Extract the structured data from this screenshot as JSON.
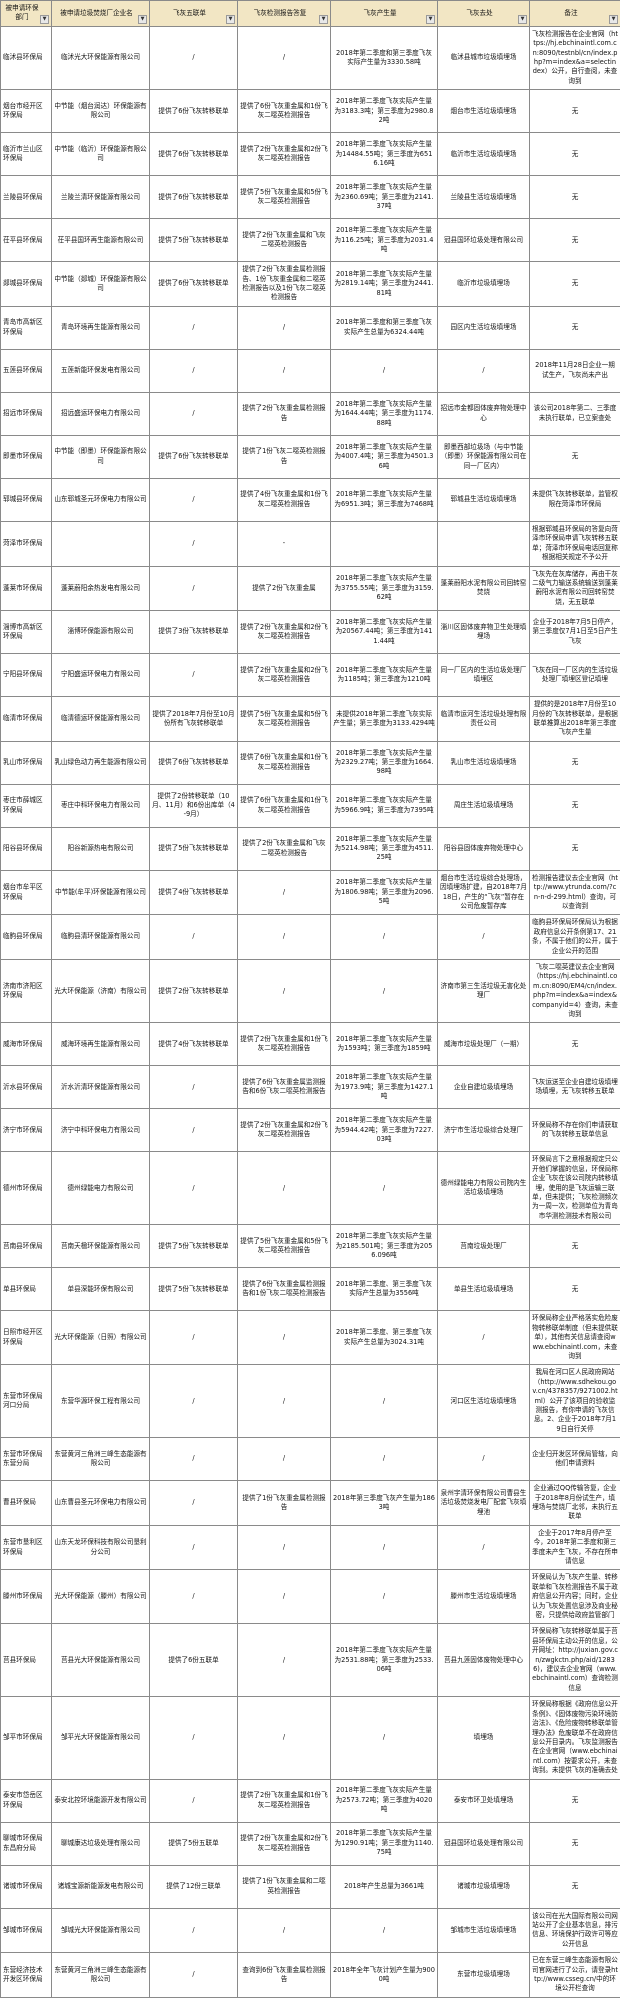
{
  "headers": [
    "被申请环保部门",
    "被申请垃圾焚烧厂企业名",
    "飞灰五联单",
    "飞灰检测报告答复",
    "飞灰产生量",
    "飞灰去处",
    "备注"
  ],
  "header_bg": "#f2e6c4",
  "rows": [
    {
      "dept": "临沭县环保局",
      "company": "临沭光大环保能源有限公司",
      "manifest": "/",
      "report": "/",
      "amount": "2018年第二季度和第三季度飞灰实际产生量为3330.58吨",
      "dest": "临沭县城市垃圾填埋场",
      "note": "飞灰检测报告在企业官网（https://hj.ebchinaintl.com.cn:8090/testnbl/cn/index.php?m=index&a=selectindex）公开，自行查阅，未查询到"
    },
    {
      "dept": "烟台市经开区环保局",
      "company": "中节能（烟台润达）环保能源有限公司",
      "manifest": "提供了6份飞灰转移联单",
      "report": "提供了6份飞灰重金属和1份飞灰二噁英检测报告",
      "amount": "2018年第二季度飞灰实际产生量为3183.3吨；第三季度为2980.82吨",
      "dest": "烟台市生活垃圾填埋场",
      "note": "无"
    },
    {
      "dept": "临沂市兰山区环保局",
      "company": "中节能（临沂）环保能源有限公司",
      "manifest": "提供了6份飞灰转移联单",
      "report": "提供了2份飞灰重金属和2份飞灰二噁英检测报告",
      "amount": "2018年第二季度飞灰实际产生量为14484.55吨；第三季度为6516.16吨",
      "dest": "临沂市生活垃圾填埋场",
      "note": "无"
    },
    {
      "dept": "兰陵县环保局",
      "company": "兰陵兰清环保能源有限公司",
      "manifest": "提供了6份飞灰转移联单",
      "report": "提供了5份飞灰重金属和5份飞灰二噁英检测报告",
      "amount": "2018年第二季度飞灰实际产生量为2360.69吨；第三季度为2141.37吨",
      "dest": "兰陵县生活垃圾填埋场",
      "note": "无"
    },
    {
      "dept": "茌平县环保局",
      "company": "茌平县国环再生能源有限公司",
      "manifest": "提供了5份飞灰转移联单",
      "report": "提供了2份飞灰重金属和飞灰二噁英检测报告",
      "amount": "2018年第二季度飞灰实际产生量为116.25吨；第三季度为2031.4吨",
      "dest": "冠县国环垃圾处理有限公司",
      "note": "无"
    },
    {
      "dept": "郯城县环保局",
      "company": "中节能（郯城）环保能源有限公司",
      "manifest": "提供了6份飞灰转移联单",
      "report": "提供了2份飞灰重金属检测报告、1份飞灰重金属和二噁英检测报告以及1份飞灰二噁英检测报告",
      "amount": "2018年第二季度飞灰实际产生量为2819.14吨；第三季度为2441.81吨",
      "dest": "临沂市垃圾填埋场",
      "note": "无"
    },
    {
      "dept": "青岛市高新区环保局",
      "company": "青岛环境再生能源有限公司",
      "manifest": "/",
      "report": "/",
      "amount": "2018年第二季度和第三季度飞灰实际产生总量为6324.44吨",
      "dest": "园区内生活垃圾填埋场",
      "note": "无"
    },
    {
      "dept": "五莲县环保局",
      "company": "五莲新能环保发电有限公司",
      "manifest": "/",
      "report": "/",
      "amount": "/",
      "dest": "/",
      "note": "2018年11月28日企业一期试生产，飞灰尚未产出"
    },
    {
      "dept": "招远市环保局",
      "company": "招远盛运环保电力有限公司",
      "manifest": "/",
      "report": "提供了2份飞灰重金属检测报告",
      "amount": "2018年第二季度飞灰实际产生量为1644.44吨；第三季度为1174.88吨",
      "dest": "招远市金都固体废弃物处理中心",
      "note": "该公司2018年第二、三季度未执行联单，已立案查处"
    },
    {
      "dept": "即墨市环保局",
      "company": "中节能（即墨）环保能源有限公司",
      "manifest": "提供了6份飞灰转移联单",
      "report": "提供了1份飞灰二噁英检测报告",
      "amount": "2018年第二季度飞灰实际产生量为4007.4吨；第三季度为4501.36吨",
      "dest": "即墨西部垃圾场（与中节能（即墨）环保能源有限公司在同一厂区内）",
      "note": "无"
    },
    {
      "dept": "郓城县环保局",
      "company": "山东郓城圣元环保电力有限公司",
      "manifest": "/",
      "report": "提供了4份飞灰重金属和1份飞灰二噁英检测报告",
      "amount": "2018年第二季度飞灰实际产生量为6951.3吨；第三季度为7468吨",
      "dest": "郓城县生活垃圾填埋场",
      "note": "未提供飞灰转移联单，监管权限在菏泽市环保局"
    },
    {
      "dept": "菏泽市环保局",
      "company": "",
      "manifest": "/",
      "report": "-",
      "amount": "",
      "dest": "",
      "note": "根据郓城县环保局的答复向菏泽市环保局申请飞灰转移五联单；菏泽市环保局电话回复称根据相关规定不予公开",
      "cut": true
    },
    {
      "dept": "蓬莱市环保局",
      "company": "蓬莱蔚阳余热发电有限公司",
      "manifest": "/",
      "report": "提供了2份飞灰重金属",
      "amount": "2018年第二季度飞灰实际产生量为3755.55吨；第三季度为3159.62吨",
      "dest": "蓬莱蔚阳水泥有限公司回转窑焚烧",
      "note": "飞灰先在灰库储存，再由干灰二级气力输送系统输送到蓬莱蔚阳水泥有限公司回转窑焚烧，无五联单"
    },
    {
      "dept": "淄博市高新区环保局",
      "company": "淄博环保能源有限公司",
      "manifest": "提供了3份飞灰转移联单",
      "report": "提供了2份飞灰重金属和2份飞灰二噁英检测报告",
      "amount": "2018年第二季度飞灰实际产生量为20567.44吨；第三季度为1411.44吨",
      "dest": "淄川区固体废弃物卫生处理填埋场",
      "note": "企业于2018年7月5日停产，第三季度仅7月1日至5日产生飞灰"
    },
    {
      "dept": "宁阳县环保局",
      "company": "宁阳盛运环保电力有限公司",
      "manifest": "/",
      "report": "提供了2份飞灰重金属和2份飞灰二噁英检测报告",
      "amount": "2018年第二季度飞灰实际产生量为1185吨；第三季度为1210吨",
      "dest": "同一厂区内的生活垃圾处理厂填埋区",
      "note": "飞灰在同一厂区内的生活垃圾处理厂填埋区登记填埋"
    },
    {
      "dept": "临清市环保局",
      "company": "临清德运环保能源有限公司",
      "manifest": "提供了2018年7月份至10月份所有飞灰转移联单",
      "report": "提供了5份飞灰重金属和5份飞灰二噁英检测报告",
      "amount": "未提供2018年第二季度飞灰实际产生量；第三季度为3133.4294吨",
      "dest": "临清市运河生活垃圾处理有限责任公司",
      "note": "提供的是2018年7月份至10月份的飞灰转移联单，是根据联单推算出2018年第三季度飞灰产生量"
    },
    {
      "dept": "乳山市环保局",
      "company": "乳山绿色动力再生能源有限公司",
      "manifest": "提供了6份飞灰转移联单",
      "report": "提供了6份飞灰重金属和1份飞灰二噁英检测报告",
      "amount": "2018年第二季度飞灰实际产生量为2329.27吨；第三季度为1664.98吨",
      "dest": "乳山市生活垃圾填埋场",
      "note": "无"
    },
    {
      "dept": "枣庄市薛城区环保局",
      "company": "枣庄中科环保电力有限公司",
      "manifest": "提供了2份转移联单（10月、11月）和6份出库单（4-9月）",
      "report": "提供了6份飞灰重金属和1份飞灰二噁英检测报告",
      "amount": "2018年第二季度飞灰实际产生量为5966.9吨；第三季度为7395吨",
      "dest": "周庄生活垃圾填埋场",
      "note": "无"
    },
    {
      "dept": "阳谷县环保局",
      "company": "阳谷新源热电有限公司",
      "manifest": "提供了5份飞灰转移联单",
      "report": "提供了2份飞灰重金属和飞灰二噁英检测报告",
      "amount": "2018年第二季度飞灰实际产生量为5214.98吨；第三季度为4511.25吨",
      "dest": "阳谷县固体废弃物处理中心",
      "note": "无"
    },
    {
      "dept": "烟台市牟平区环保局",
      "company": "中节能(牟平)环保能源有限公司",
      "manifest": "提供了4份飞灰转移联单",
      "report": "/",
      "amount": "2018年第二季度飞灰实际产生量为1806.98吨；第三季度为2096.5吨",
      "dest": "烟台市生活垃圾综合处理场，因填埋场扩建，自2018年7月18日，产生的“飞灰”暂存在公司危废暂存库",
      "note": "检测报告建议去企业官网（http://www.ytrunda.com/?cn-n-d-299.html）查询，可以查询到"
    },
    {
      "dept": "临朐县环保局",
      "company": "临朐县清环保能源有限公司",
      "manifest": "/",
      "report": "/",
      "amount": "/",
      "dest": "/",
      "note": "临朐县环保局环保局认为根据政府信息公开条例第17、21条，不属于他们的公开，属于企业公开的范围"
    },
    {
      "dept": "济南市济阳区环保局",
      "company": "光大环保能源（济南）有限公司",
      "manifest": "提供了2份飞灰转移联单",
      "report": "/",
      "amount": "/",
      "dest": "济南市第三生活垃圾无害化处理厂",
      "note": "飞灰二噁英建议去企业官网（https://hj.ebchinaintl.com.cn:8090/EM4/cn/index.php?m=index&a=index&companyid=4）查询，未查询到"
    },
    {
      "dept": "威海市环保局",
      "company": "威海环境再生能源有限公司",
      "manifest": "提供了4份飞灰转移联单",
      "report": "提供了2份飞灰重金属和1份飞灰二噁英检测报告",
      "amount": "2018年第二季度飞灰实际产生量为1593吨；第三季度为1859吨",
      "dest": "威海市垃圾处理厂（一期）",
      "note": "无"
    },
    {
      "dept": "沂水县环保局",
      "company": "沂水沂清环保能源有限公司",
      "manifest": "/",
      "report": "提供了6份飞灰重金属监测报告和6份飞灰二噁英检测报告",
      "amount": "2018年第二季度飞灰实际产生量为1973.9吨；第三季度为1427.1吨",
      "dest": "企业自建垃圾填埋场",
      "note": "飞灰运送至企业自建垃圾填埋场填埋，无飞灰转移五联单"
    },
    {
      "dept": "济宁市环保局",
      "company": "济宁中科环保电力有限公司",
      "manifest": "/",
      "report": "提供了2份飞灰重金属和2份飞灰二噁英检测报告",
      "amount": "2018年第二季度飞灰实际产生量为5944.42吨；第三季度为7227.03吨",
      "dest": "济宁市生活垃圾综合处理厂",
      "note": "环保局称不存在你们申请获取的飞灰转移五联单信息"
    },
    {
      "dept": "德州市环保局",
      "company": "德州绿能电力有限公司",
      "manifest": "/",
      "report": "/",
      "amount": "/",
      "dest": "德州绿能电力有限公司院内生活垃圾填埋场",
      "note": "环保局言下之意根据规定只公开他们掌握的信息，环保局称企业飞灰在该公司院内转移填埋，使用的是飞灰运输三联单，但未提供；飞灰检测频次为一周一次，检测单位为青岛市华测检测技术有限公司"
    },
    {
      "dept": "莒南县环保局",
      "company": "莒南天楹环保能源有限公司",
      "manifest": "提供了5份飞灰转移联单",
      "report": "提供了5份飞灰重金属和5份飞灰二噁英检测报告",
      "amount": "2018年第二季度飞灰实际产生量为2185.501吨；第三季度为2056.096吨",
      "dest": "莒南垃圾处理厂",
      "note": "无"
    },
    {
      "dept": "单县环保局",
      "company": "单县深能环保有限公司",
      "manifest": "提供了5份飞灰转移联单",
      "report": "提供了6份飞灰重金属检测报告和1份飞灰二噁英检测报告",
      "amount": "2018年第二季度、第三季度飞灰实际产生总量为3556吨",
      "dest": "单县生活垃圾填埋场",
      "note": "无"
    },
    {
      "dept": "日照市经开区环保局",
      "company": "光大环保能源（日照）有限公司",
      "manifest": "/",
      "report": "/",
      "amount": "2018年第二季度、第三季度飞灰实际产生总量为3024.31吨",
      "dest": "/",
      "note": "环保局称企业严格落实危险废物转移联单制度（但未提供联单），其他有关信息请查阅www.ebchinaintl.com，未查询到"
    },
    {
      "dept": "东营市环保局河口分局",
      "company": "东营华源环保工程有限公司",
      "manifest": "/",
      "report": "/",
      "amount": "/",
      "dest": "河口区生活垃圾填埋场",
      "note": "我局在河口区人民政府网站（http://www.sdhekou.gov.cn/4378357/9271002.html）公开了该项目的验收监测报告，有你申请的飞灰信息。2、企业于2018年7月19日自行关停"
    },
    {
      "dept": "东营市环保局东营分局",
      "company": "东营黄河三角洲三峰生态能源有限公司",
      "manifest": "/",
      "report": "/",
      "amount": "/",
      "dest": "/",
      "note": "企业归开发区环保局管辖，向他们申请资料"
    },
    {
      "dept": "曹县环保局",
      "company": "山东曹县圣元环保电力有限公司",
      "manifest": "/",
      "report": "提供了1份飞灰重金属检测报告",
      "amount": "2018年第三季度飞灰产生量为1863吨",
      "dest": "泉州宇清环保有限公司曹县生活垃圾焚烧发电厂配套飞灰填埋池",
      "note": "企业通过QQ传输答复，企业于2018年8月份试生产，填埋场与焚烧厂北邻，未执行五联单"
    },
    {
      "dept": "东营市垦利区环保局",
      "company": "山东天龙环保科技有限公司垦利分公司",
      "manifest": "/",
      "report": "/",
      "amount": "/",
      "dest": "/",
      "note": "企业于2017年8月停产至今，2018年第二季度和第三季度未产生飞灰，不存在所申请信息"
    },
    {
      "dept": "滕州市环保局",
      "company": "光大环保能源（滕州）有限公司",
      "manifest": "/",
      "report": "/",
      "amount": "/",
      "dest": "滕州市生活垃圾填埋场",
      "note": "环保局认为飞灰产生量、转移联单和飞灰检测报告不属于政府信息公开内容；同时，企业认为飞灰处置信息涉及商业秘密，只提供给政府监管部门"
    },
    {
      "dept": "莒县环保局",
      "company": "莒县光大环保能源有限公司",
      "manifest": "提供了6份五联单",
      "report": "/",
      "amount": "2018年第二季度飞灰实际产生量为2531.88吨；第三季度为2533.06吨",
      "dest": "莒县九莲固体废物处理中心",
      "note": "环保局称飞灰转移联单属于莒县环保局主动公开的信息，公开网址：http://juxian.gov.cn/zwgkctn.php/aid/12836)，建议去企业官网（www.ebchinaintl.com）查询检测信息"
    },
    {
      "dept": "邹平市环保局",
      "company": "邹平光大环保能源有限公司",
      "manifest": "/",
      "report": "/",
      "amount": "/",
      "dest": "填埋场",
      "note": "环保局称根据《政府信息公开条例》、《固体废物污染环境防治法》、《危险废物转移联单管理办法》危废联单不在政府信息公开目录内。飞灰监测报告在企业官网（www.ebchinaintl.com）按要求公开，未查询到。未提供飞灰的准确去处"
    },
    {
      "dept": "泰安市岱岳区环保局",
      "company": "泰安北控环境能源开发有限公司",
      "manifest": "/",
      "report": "提供了2份飞灰重金属和1份飞灰二噁英检测报告",
      "amount": "2018年第二季度飞灰实际产生量为2573.72吨；第三季度为4020吨",
      "dest": "泰安市环卫处填埋场",
      "note": "无"
    },
    {
      "dept": "聊城市环保局东昌府分局",
      "company": "聊城康达垃圾处理有限公司",
      "manifest": "提供了5份五联单",
      "report": "提供了2份飞灰重金属和2份飞灰二噁英检测报告",
      "amount": "2018年第二季度飞灰实际产生量为1290.91吨；第三季度为1140.75吨",
      "dest": "冠县国环垃圾处理有限公司",
      "note": "无"
    },
    {
      "dept": "诸城市环保局",
      "company": "诸城宝源新能源发电有限公司",
      "manifest": "提供了12份三联单",
      "report": "提供了1份飞灰重金属和二噁英检测报告",
      "amount": "2018年产生总量为3661吨",
      "dest": "诸城市垃圾填埋场",
      "note": "无"
    },
    {
      "dept": "邹城市环保局",
      "company": "邹城光大环保能源有限公司",
      "manifest": "/",
      "report": "/",
      "amount": "/",
      "dest": "邹城市生活垃圾填埋场",
      "note": "该公司在光大国际有限公司网站公开了企业基本信息，排污信息、环境保护行政许可等应公开信息"
    },
    {
      "dept": "东营经济技术开发区环保局",
      "company": "东营黄河三角洲三峰生态能源有限公司",
      "manifest": "/",
      "report": "查询到6份飞灰重金属检测报告",
      "amount": "2018年全年飞灰计划产生量为9000吨",
      "dest": "东营市垃圾填埋场",
      "note": "已在东营三峰生态能源有限公司官网进行了公示，请登录http://www.csseg.cn/中的环境公开栏查询"
    }
  ]
}
